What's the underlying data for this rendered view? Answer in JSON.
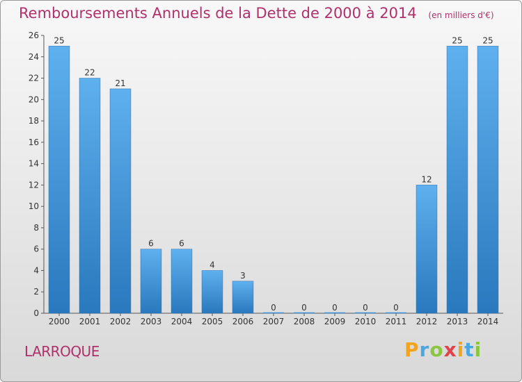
{
  "chart_data": {
    "type": "bar",
    "title": "Remboursements Annuels de la Dette de 2000 à 2014",
    "unit": "(en milliers d'€)",
    "categories": [
      "2000",
      "2001",
      "2002",
      "2003",
      "2004",
      "2005",
      "2006",
      "2007",
      "2008",
      "2009",
      "2010",
      "2011",
      "2012",
      "2013",
      "2014"
    ],
    "values": [
      25,
      22,
      21,
      6,
      6,
      4,
      3,
      0,
      0,
      0,
      0,
      0,
      12,
      25,
      25
    ],
    "ylim": [
      0,
      26
    ],
    "yticks": [
      0,
      2,
      4,
      6,
      8,
      10,
      12,
      14,
      16,
      18,
      20,
      22,
      24,
      26
    ],
    "grid": false,
    "bar_color": "#3a8fd6"
  },
  "commune": "LARROQUE",
  "brand": {
    "letters": [
      "P",
      "r",
      "o",
      "x",
      "i",
      "t",
      "i"
    ],
    "colors": [
      "#f2a51a",
      "#4aa8e0",
      "#8cc63f",
      "#e2424a",
      "#f2a51a",
      "#4aa8e0",
      "#8cc63f"
    ]
  }
}
